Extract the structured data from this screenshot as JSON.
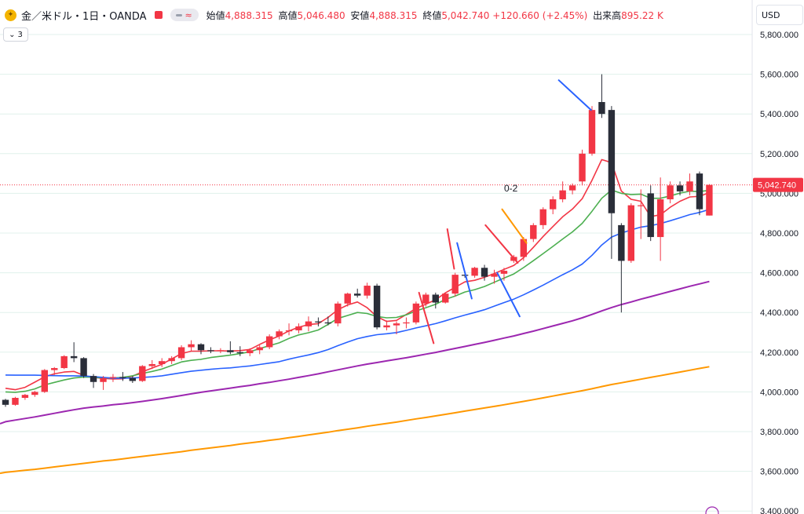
{
  "header": {
    "icon": "gold-coin-icon",
    "symbol_title": "金／米ドル・1日・OANDA",
    "ohlc": [
      {
        "label": "始値",
        "value": "4,888.315"
      },
      {
        "label": "高値",
        "value": "5,046.480"
      },
      {
        "label": "安値",
        "value": "4,888.315"
      },
      {
        "label": "終値",
        "value": "5,042.740"
      },
      {
        "label": "",
        "value": "+120.660 (+2.45%)"
      },
      {
        "label": "出来高",
        "value": "895.22 K"
      }
    ],
    "indicators_toggle_label": "3",
    "currency": "USD"
  },
  "colors": {
    "up": "#f23645",
    "down": "#2a2e39",
    "ema5": "#f23645",
    "ema10": "#4caf50",
    "ema20": "#2962ff",
    "ema50": "#9c27b0",
    "ema100": "#ff9800",
    "grid": "#e0f1ec"
  },
  "chart_data": {
    "type": "candlestick",
    "y_axis_ticks": [
      3400,
      3600,
      3800,
      4000,
      4200,
      4400,
      4600,
      4800,
      5000,
      5200,
      5400,
      5600,
      5800
    ],
    "y_axis_labels": [
      "3,400.000",
      "3,600.000",
      "3,800.000",
      "4,000.000",
      "4,200.000",
      "4,400.000",
      "4,600.000",
      "4,800.000",
      "5,000.000",
      "5,200.000",
      "5,400.000",
      "5,600.000",
      "5,800.000"
    ],
    "ylim": [
      3380,
      5830
    ],
    "last_price": 5042.74,
    "last_price_label": "5,042.740",
    "candles": [
      [
        3960,
        3965,
        3925,
        3935
      ],
      [
        3935,
        3975,
        3930,
        3970
      ],
      [
        3970,
        3990,
        3960,
        3985
      ],
      [
        3985,
        4005,
        3975,
        4000
      ],
      [
        4000,
        4115,
        3995,
        4110
      ],
      [
        4110,
        4125,
        4085,
        4120
      ],
      [
        4120,
        4185,
        4115,
        4180
      ],
      [
        4180,
        4250,
        4150,
        4170
      ],
      [
        4170,
        4175,
        4070,
        4080
      ],
      [
        4080,
        4090,
        4020,
        4050
      ],
      [
        4050,
        4080,
        4010,
        4070
      ],
      [
        4070,
        4090,
        4050,
        4075
      ],
      [
        4075,
        4100,
        4055,
        4070
      ],
      [
        4070,
        4080,
        4045,
        4055
      ],
      [
        4055,
        4135,
        4050,
        4130
      ],
      [
        4130,
        4160,
        4115,
        4140
      ],
      [
        4140,
        4170,
        4125,
        4155
      ],
      [
        4155,
        4180,
        4140,
        4170
      ],
      [
        4170,
        4235,
        4160,
        4225
      ],
      [
        4225,
        4260,
        4205,
        4240
      ],
      [
        4240,
        4245,
        4190,
        4210
      ],
      [
        4210,
        4225,
        4195,
        4205
      ],
      [
        4205,
        4220,
        4195,
        4210
      ],
      [
        4210,
        4255,
        4190,
        4200
      ],
      [
        4200,
        4230,
        4180,
        4195
      ],
      [
        4195,
        4220,
        4180,
        4210
      ],
      [
        4210,
        4235,
        4190,
        4225
      ],
      [
        4225,
        4290,
        4215,
        4280
      ],
      [
        4280,
        4315,
        4265,
        4305
      ],
      [
        4305,
        4345,
        4285,
        4310
      ],
      [
        4310,
        4345,
        4295,
        4330
      ],
      [
        4330,
        4380,
        4305,
        4355
      ],
      [
        4355,
        4375,
        4330,
        4350
      ],
      [
        4350,
        4380,
        4335,
        4345
      ],
      [
        4345,
        4455,
        4330,
        4445
      ],
      [
        4445,
        4500,
        4430,
        4495
      ],
      [
        4495,
        4520,
        4475,
        4485
      ],
      [
        4485,
        4550,
        4470,
        4535
      ],
      [
        4535,
        4545,
        4315,
        4325
      ],
      [
        4325,
        4360,
        4310,
        4335
      ],
      [
        4335,
        4355,
        4290,
        4345
      ],
      [
        4345,
        4375,
        4320,
        4350
      ],
      [
        4350,
        4455,
        4340,
        4445
      ],
      [
        4445,
        4500,
        4430,
        4490
      ],
      [
        4490,
        4500,
        4420,
        4450
      ],
      [
        4450,
        4500,
        4445,
        4495
      ],
      [
        4495,
        4600,
        4480,
        4590
      ],
      [
        4590,
        4605,
        4575,
        4585
      ],
      [
        4585,
        4630,
        4575,
        4625
      ],
      [
        4625,
        4640,
        4560,
        4580
      ],
      [
        4580,
        4615,
        4545,
        4595
      ],
      [
        4595,
        4625,
        4560,
        4610
      ],
      [
        4660,
        4690,
        4650,
        4680
      ],
      [
        4680,
        4780,
        4660,
        4770
      ],
      [
        4770,
        4850,
        4755,
        4840
      ],
      [
        4840,
        4930,
        4820,
        4920
      ],
      [
        4920,
        4985,
        4895,
        4970
      ],
      [
        4970,
        5060,
        4955,
        5015
      ],
      [
        5015,
        5050,
        4995,
        5040
      ],
      [
        5060,
        5220,
        5040,
        5200
      ],
      [
        5200,
        5440,
        5190,
        5420
      ],
      [
        5460,
        5600,
        5380,
        5400
      ],
      [
        5420,
        5440,
        4670,
        4900
      ],
      [
        4840,
        4850,
        4400,
        4660
      ],
      [
        4660,
        4950,
        4650,
        4940
      ],
      [
        4940,
        5020,
        4770,
        4940
      ],
      [
        5000,
        5040,
        4760,
        4780
      ],
      [
        4780,
        5080,
        4660,
        4970
      ],
      [
        4970,
        5060,
        4950,
        5040
      ],
      [
        5040,
        5060,
        4990,
        5010
      ],
      [
        5010,
        5100,
        4990,
        5060
      ],
      [
        5100,
        5110,
        4890,
        4920
      ],
      [
        4888.315,
        5046.48,
        4888.315,
        5042.74
      ]
    ],
    "ema_series": [
      {
        "period": 5,
        "values": [
          4018,
          4011,
          4023,
          4049,
          4076,
          4091,
          4100,
          4103,
          4083,
          4073,
          4068,
          4065,
          4066,
          4079,
          4101,
          4120,
          4139,
          4166,
          4193,
          4205,
          4205,
          4207,
          4207,
          4206,
          4208,
          4214,
          4239,
          4262,
          4282,
          4307,
          4326,
          4339,
          4344,
          4375,
          4414,
          4438,
          4453,
          4424,
          4379,
          4355,
          4360,
          4390,
          4421,
          4442,
          4464,
          4499,
          4527,
          4554,
          4562,
          4577,
          4596,
          4617,
          4637,
          4676,
          4728,
          4783,
          4833,
          4882,
          4921,
          4973,
          5066,
          5170,
          5155,
          5012,
          4970,
          4960,
          4883,
          4892,
          4930,
          4960,
          4982,
          4985,
          5004
        ]
      },
      {
        "period": 10,
        "values": [
          4000,
          3998,
          4003,
          4015,
          4035,
          4048,
          4060,
          4070,
          4075,
          4074,
          4070,
          4070,
          4073,
          4081,
          4093,
          4103,
          4115,
          4133,
          4151,
          4159,
          4164,
          4173,
          4179,
          4185,
          4193,
          4202,
          4218,
          4233,
          4247,
          4269,
          4287,
          4298,
          4312,
          4340,
          4370,
          4385,
          4400,
          4395,
          4380,
          4373,
          4375,
          4388,
          4408,
          4424,
          4441,
          4466,
          4483,
          4503,
          4515,
          4531,
          4552,
          4573,
          4594,
          4626,
          4661,
          4697,
          4733,
          4770,
          4806,
          4849,
          4910,
          4975,
          5017,
          5000,
          4994,
          4996,
          4975,
          4975,
          4987,
          5001,
          5011,
          5009,
          5015
        ]
      },
      {
        "period": 20,
        "values": [
          4085,
          4084,
          4084,
          4084,
          4083,
          4082,
          4081,
          4081,
          4080,
          4077,
          4073,
          4069,
          4069,
          4070,
          4073,
          4076,
          4081,
          4089,
          4097,
          4104,
          4109,
          4114,
          4118,
          4121,
          4126,
          4131,
          4138,
          4145,
          4152,
          4165,
          4176,
          4186,
          4198,
          4213,
          4233,
          4251,
          4268,
          4279,
          4288,
          4293,
          4299,
          4310,
          4322,
          4333,
          4344,
          4358,
          4373,
          4387,
          4400,
          4414,
          4432,
          4450,
          4467,
          4489,
          4513,
          4538,
          4564,
          4590,
          4615,
          4644,
          4688,
          4740,
          4780,
          4800,
          4816,
          4830,
          4837,
          4848,
          4862,
          4877,
          4893,
          4904,
          4919
        ]
      },
      {
        "period": 50,
        "values": [
          3850,
          3858,
          3866,
          3874,
          3883,
          3892,
          3901,
          3910,
          3918,
          3924,
          3929,
          3935,
          3940,
          3946,
          3952,
          3959,
          3966,
          3974,
          3982,
          3990,
          3998,
          4005,
          4012,
          4019,
          4026,
          4033,
          4041,
          4048,
          4056,
          4064,
          4073,
          4082,
          4091,
          4101,
          4111,
          4121,
          4131,
          4140,
          4148,
          4156,
          4164,
          4172,
          4181,
          4190,
          4199,
          4209,
          4219,
          4229,
          4239,
          4249,
          4260,
          4271,
          4282,
          4294,
          4306,
          4319,
          4332,
          4345,
          4358,
          4373,
          4390,
          4408,
          4425,
          4440,
          4453,
          4467,
          4480,
          4493,
          4506,
          4519,
          4532,
          4544,
          4556
        ]
      },
      {
        "period": 100,
        "values": [
          3595,
          3600,
          3605,
          3610,
          3616,
          3622,
          3628,
          3634,
          3640,
          3646,
          3652,
          3657,
          3663,
          3669,
          3675,
          3681,
          3687,
          3693,
          3699,
          3706,
          3712,
          3718,
          3724,
          3730,
          3737,
          3743,
          3749,
          3756,
          3762,
          3769,
          3776,
          3783,
          3790,
          3797,
          3805,
          3812,
          3819,
          3827,
          3834,
          3841,
          3848,
          3856,
          3864,
          3871,
          3879,
          3887,
          3895,
          3903,
          3911,
          3919,
          3927,
          3935,
          3944,
          3952,
          3961,
          3970,
          3979,
          3988,
          3997,
          4006,
          4016,
          4027,
          4037,
          4046,
          4055,
          4064,
          4073,
          4082,
          4091,
          4100,
          4109,
          4118,
          4127
        ]
      }
    ],
    "annotations": [
      {
        "text": "0-2",
        "x_index": 51,
        "price": 5010
      }
    ],
    "trend_lines": [
      {
        "color": "#2962ff",
        "from": [
          46.2,
          4750
        ],
        "to": [
          47.7,
          4470
        ]
      },
      {
        "color": "#f23645",
        "from": [
          45.2,
          4820
        ],
        "to": [
          45.9,
          4620
        ]
      },
      {
        "color": "#f23645",
        "from": [
          42.3,
          4500
        ],
        "to": [
          43.8,
          4245
        ]
      },
      {
        "color": "#2962ff",
        "from": [
          50.3,
          4600
        ],
        "to": [
          52.6,
          4380
        ]
      },
      {
        "color": "#f23645",
        "from": [
          49.1,
          4840
        ],
        "to": [
          52.4,
          4650
        ]
      },
      {
        "color": "#ff9800",
        "from": [
          50.8,
          4920
        ],
        "to": [
          53.3,
          4750
        ]
      },
      {
        "color": "#2962ff",
        "from": [
          56.6,
          5570
        ],
        "to": [
          59.9,
          5420
        ]
      }
    ]
  }
}
